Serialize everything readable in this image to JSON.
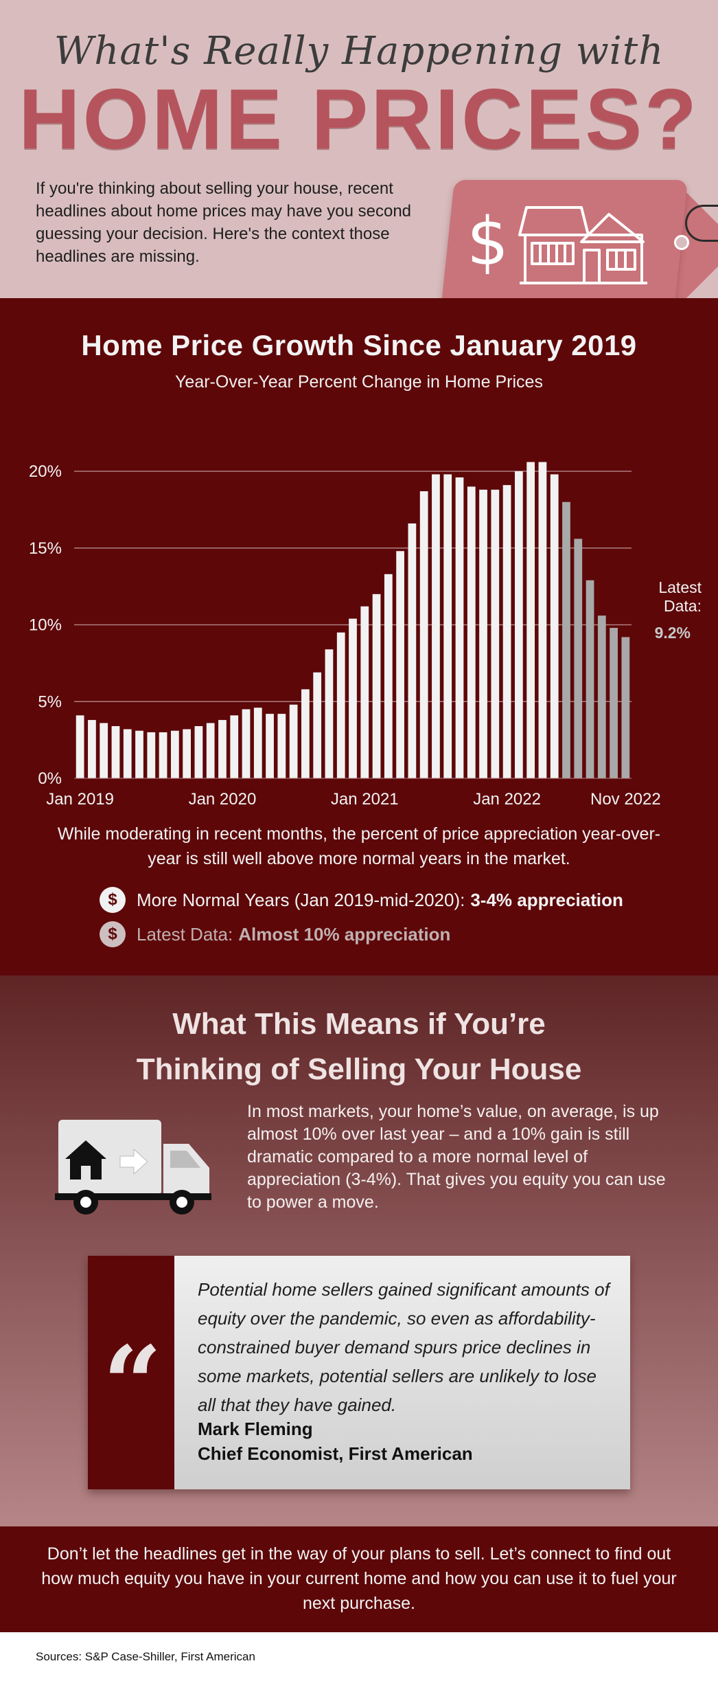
{
  "header": {
    "title_top": "What's Really Happening with",
    "title_main": "HOME PRICES?",
    "intro": "If you're thinking about selling your house, recent headlines about home prices may have you second guessing your decision. Here's the context those headlines are missing.",
    "tag_symbol": "$"
  },
  "chart_section": {
    "title": "Home Price Growth Since January 2019",
    "subtitle": "Year-Over-Year Percent Change in Home Prices",
    "latest_label_line1": "Latest",
    "latest_label_line2": "Data:",
    "latest_value": "9.2%",
    "note": "While moderating in recent months, the percent of price appreciation year-over-year is still well above more normal years in the market.",
    "bullets": [
      {
        "prefix": "More Normal Years (Jan 2019-mid-2020):",
        "bold": "3-4% appreciation"
      },
      {
        "prefix": "Latest Data:",
        "bold": "Almost 10% appreciation"
      }
    ]
  },
  "chart_data": {
    "type": "bar",
    "title": "Home Price Growth Since January 2019",
    "subtitle": "Year-Over-Year Percent Change in Home Prices",
    "xlabel": "",
    "ylabel": "",
    "ylim": [
      0,
      20
    ],
    "yticks": [
      "0%",
      "5%",
      "10%",
      "15%",
      "20%"
    ],
    "xtick_labels": [
      {
        "index": 0,
        "label": "Jan 2019"
      },
      {
        "index": 12,
        "label": "Jan 2020"
      },
      {
        "index": 24,
        "label": "Jan 2021"
      },
      {
        "index": 36,
        "label": "Jan 2022"
      },
      {
        "index": 46,
        "label": "Nov 2022"
      }
    ],
    "grid": true,
    "highlight_from_index": 41,
    "colors": {
      "bar": "#f2f2f2",
      "bar_recent": "#a9a9a9",
      "grid": "#b07f80",
      "text": "#f3f3f3"
    },
    "categories": [
      "Jan 2019",
      "Feb 2019",
      "Mar 2019",
      "Apr 2019",
      "May 2019",
      "Jun 2019",
      "Jul 2019",
      "Aug 2019",
      "Sep 2019",
      "Oct 2019",
      "Nov 2019",
      "Dec 2019",
      "Jan 2020",
      "Feb 2020",
      "Mar 2020",
      "Apr 2020",
      "May 2020",
      "Jun 2020",
      "Jul 2020",
      "Aug 2020",
      "Sep 2020",
      "Oct 2020",
      "Nov 2020",
      "Dec 2020",
      "Jan 2021",
      "Feb 2021",
      "Mar 2021",
      "Apr 2021",
      "May 2021",
      "Jun 2021",
      "Jul 2021",
      "Aug 2021",
      "Sep 2021",
      "Oct 2021",
      "Nov 2021",
      "Dec 2021",
      "Jan 2022",
      "Feb 2022",
      "Mar 2022",
      "Apr 2022",
      "May 2022",
      "Jun 2022",
      "Jul 2022",
      "Aug 2022",
      "Sep 2022",
      "Oct 2022",
      "Nov 2022"
    ],
    "values": [
      4.1,
      3.8,
      3.6,
      3.4,
      3.2,
      3.1,
      3.0,
      3.0,
      3.1,
      3.2,
      3.4,
      3.6,
      3.8,
      4.1,
      4.5,
      4.6,
      4.2,
      4.2,
      4.8,
      5.8,
      6.9,
      8.4,
      9.5,
      10.4,
      11.2,
      12.0,
      13.3,
      14.8,
      16.6,
      18.7,
      19.8,
      19.8,
      19.6,
      19.0,
      18.8,
      18.8,
      19.1,
      20.0,
      20.6,
      20.6,
      19.8,
      18.0,
      15.6,
      12.9,
      10.6,
      9.8,
      9.2
    ]
  },
  "sell_section": {
    "title_line1": "What This Means if You’re",
    "title_line2": "Thinking of Selling Your House",
    "text": "In most markets, your home’s value, on average, is up almost 10% over last year – and a 10% gain is still dramatic compared to a more normal level of appreciation (3-4%). That gives you equity you can use to power a move.",
    "quote": "Potential home sellers gained significant amounts of equity over the pandemic, so even as affordability-constrained buyer demand spurs price declines in some markets, potential sellers are unlikely to lose all that they have gained.",
    "quote_mark": "“",
    "author_name": "Mark Fleming",
    "author_title": "Chief Economist, First American"
  },
  "cta": {
    "text": "Don’t let the headlines get in the way of your plans to sell. Let’s connect to find out how much equity you have in your current home and how you can use it to fuel your next purchase."
  },
  "sources": "Sources: S&P Case-Shiller, First American",
  "icons": {
    "tag": "price-tag-icon",
    "house": "house-icon",
    "truck": "moving-truck-icon",
    "coin": "dollar-coin-icon"
  }
}
